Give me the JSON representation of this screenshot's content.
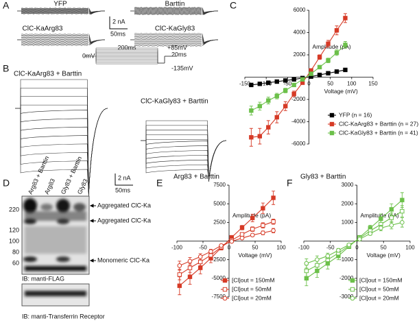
{
  "panel_labels": [
    "A",
    "B",
    "C",
    "D",
    "E",
    "F"
  ],
  "panel_a": {
    "traces": [
      "YFP",
      "Barttin",
      "ClC-KaArg83",
      "ClC-KaGly83"
    ],
    "scale_current": "2 nA",
    "scale_time": "50ms"
  },
  "protocol": {
    "duration": "200ms",
    "step_max": "+85mV",
    "tail": "20ms",
    "hold": "0mV",
    "step_min": "-135mV"
  },
  "panel_b": {
    "traces": [
      "ClC-KaArg83 + Barttin",
      "ClC-KaGly83 + Barttin"
    ],
    "scale_current": "2 nA",
    "scale_time": "50ms"
  },
  "panel_d": {
    "lanes": [
      "Arg83 + Barttin",
      "Arg83",
      "Gly83 + Barttin",
      "Gly83"
    ],
    "mw_markers": [
      220,
      120,
      100,
      80,
      60
    ],
    "bands": [
      "Aggregated ClC-Ka",
      "Aggregated ClC-Ka",
      "Monomeric ClC-Ka"
    ],
    "blots": [
      "IB: manti-FLAG",
      "IB: manti-Transferrin Receptor"
    ]
  },
  "chart_data": [
    {
      "type": "line",
      "y_label": "Amplitude (pA)",
      "x_label": "Voltage (mV)",
      "x": [
        -135,
        -115,
        -95,
        -75,
        -55,
        -35,
        -15,
        5,
        25,
        45,
        65,
        85
      ],
      "series": [
        {
          "name": "YFP (n = 16)",
          "color": "#000000",
          "marker": "filled-square",
          "values": [
            -700,
            -600,
            -500,
            -400,
            -300,
            -200,
            -80,
            50,
            200,
            350,
            500,
            650
          ],
          "errors": [
            100,
            90,
            80,
            70,
            60,
            50,
            30,
            30,
            50,
            60,
            80,
            100
          ]
        },
        {
          "name": "ClC-KaArg83 + Barttin (n = 27)",
          "color": "#d63a26",
          "marker": "filled-square",
          "values": [
            -5400,
            -5300,
            -4500,
            -3600,
            -2600,
            -1500,
            -500,
            600,
            1800,
            3000,
            4200,
            5300
          ],
          "errors": [
            800,
            700,
            600,
            500,
            400,
            250,
            100,
            100,
            200,
            300,
            400,
            400
          ]
        },
        {
          "name": "ClC-KaGly83 + Barttin (n = 41)",
          "color": "#6cc04a",
          "marker": "filled-square",
          "values": [
            -3000,
            -2600,
            -2100,
            -1700,
            -1200,
            -700,
            -200,
            300,
            900,
            1500,
            2200,
            2900
          ],
          "errors": [
            400,
            350,
            300,
            250,
            200,
            150,
            80,
            80,
            150,
            200,
            250,
            300
          ]
        }
      ],
      "xlim": [
        -150,
        150
      ],
      "ylim": [
        -6000,
        6000
      ],
      "xticks": [
        -150,
        -100,
        -50,
        0,
        50,
        100,
        150
      ],
      "yticks": [
        6000,
        4000,
        2000,
        -2000,
        -4000,
        -6000
      ]
    },
    {
      "type": "line",
      "title": "Arg83 + Barttin",
      "y_label": "Amplitude (pA)",
      "x_label": "Voltage (mV)",
      "x": [
        -95,
        -75,
        -55,
        -35,
        -15,
        5,
        25,
        45,
        65,
        85
      ],
      "series": [
        {
          "name": "[Cl]out = 150mM",
          "color": "#d63a26",
          "marker": "filled-square",
          "values": [
            -6000,
            -4800,
            -3600,
            -2300,
            -900,
            500,
            1800,
            3100,
            4400,
            5800
          ],
          "errors": [
            1200,
            1000,
            800,
            600,
            300,
            150,
            300,
            500,
            700,
            900
          ]
        },
        {
          "name": "[Cl]out = 50mM",
          "color": "#d63a26",
          "marker": "open-square",
          "values": [
            -4500,
            -3600,
            -2800,
            -1900,
            -800,
            100,
            900,
            1600,
            2100,
            2600
          ],
          "errors": [
            700,
            600,
            500,
            400,
            200,
            100,
            200,
            300,
            350,
            350
          ]
        },
        {
          "name": "[Cl]out = 20mM",
          "color": "#d63a26",
          "marker": "open-circle",
          "values": [
            -3300,
            -2700,
            -2100,
            -1400,
            -600,
            -50,
            400,
            800,
            1100,
            1400
          ],
          "errors": [
            600,
            500,
            400,
            300,
            150,
            80,
            150,
            200,
            250,
            300
          ]
        }
      ],
      "xlim": [
        -100,
        100
      ],
      "ylim": [
        -7500,
        7500
      ],
      "xticks": [
        -100,
        -50,
        0,
        50,
        100
      ],
      "yticks": [
        7500,
        5000,
        2500,
        -2500,
        -5000,
        -7500
      ]
    },
    {
      "type": "line",
      "title": "Gly83 + Barttin",
      "y_label": "Amplitude (pA)",
      "x_label": "Voltage (mV)",
      "x": [
        -95,
        -75,
        -55,
        -35,
        -15,
        5,
        25,
        45,
        65,
        85
      ],
      "series": [
        {
          "name": "[Cl]out = 150mM",
          "color": "#6cc04a",
          "marker": "filled-square",
          "values": [
            -2000,
            -1600,
            -1200,
            -800,
            -300,
            200,
            700,
            1200,
            1700,
            2200
          ],
          "errors": [
            400,
            350,
            300,
            200,
            100,
            60,
            150,
            250,
            300,
            400
          ]
        },
        {
          "name": "[Cl]out = 50mM",
          "color": "#6cc04a",
          "marker": "open-square",
          "values": [
            -1600,
            -1300,
            -1000,
            -650,
            -250,
            150,
            550,
            900,
            1250,
            1600
          ],
          "errors": [
            300,
            250,
            200,
            150,
            80,
            50,
            100,
            200,
            250,
            300
          ]
        },
        {
          "name": "[Cl]out = 20mM",
          "color": "#6cc04a",
          "marker": "open-circle",
          "values": [
            -1200,
            -1000,
            -800,
            -500,
            -200,
            100,
            400,
            700,
            850,
            1000
          ],
          "errors": [
            250,
            200,
            150,
            100,
            60,
            40,
            80,
            150,
            200,
            250
          ]
        }
      ],
      "xlim": [
        -100,
        100
      ],
      "ylim": [
        -3000,
        3000
      ],
      "xticks": [
        -100,
        -50,
        0,
        50,
        100
      ],
      "yticks": [
        3000,
        2000,
        1000,
        -1000,
        -2000,
        -3000
      ]
    }
  ]
}
